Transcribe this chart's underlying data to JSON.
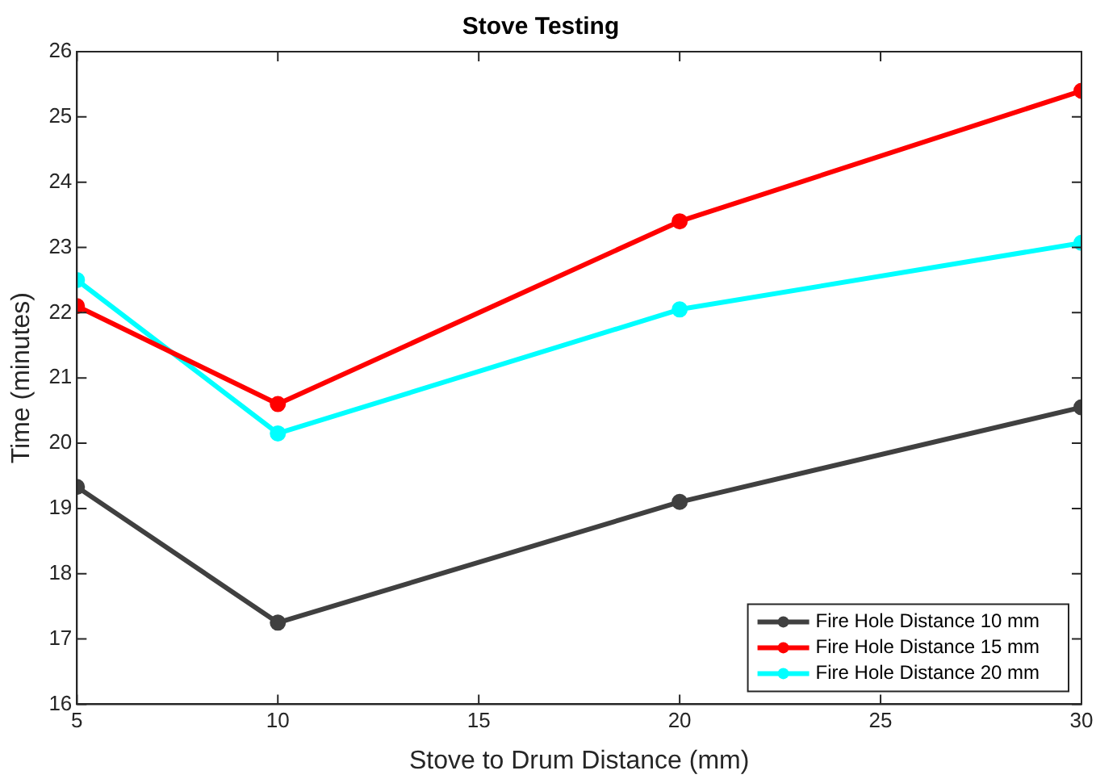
{
  "chart_data": {
    "type": "line",
    "title": "Stove Testing",
    "xlabel": "Stove to Drum Distance (mm)",
    "ylabel": "Time (minutes)",
    "x": [
      5,
      10,
      20,
      30
    ],
    "series": [
      {
        "name": "Fire Hole Distance 10 mm",
        "color": "#404040",
        "values": [
          19.33,
          17.25,
          19.1,
          20.55
        ]
      },
      {
        "name": "Fire Hole Distance 15 mm",
        "color": "#ff0000",
        "values": [
          22.1,
          20.6,
          23.4,
          25.4
        ]
      },
      {
        "name": "Fire Hole Distance 20 mm",
        "color": "#00ffff",
        "values": [
          22.5,
          20.15,
          22.05,
          23.07
        ]
      }
    ],
    "xlim": [
      5,
      30
    ],
    "xticks": [
      5,
      10,
      15,
      20,
      25,
      30
    ],
    "ylim": [
      16,
      26
    ],
    "yticks": [
      16,
      17,
      18,
      19,
      20,
      21,
      22,
      23,
      24,
      25,
      26
    ],
    "grid": false,
    "legend": "bottom right",
    "marker": "circle",
    "line_style": "solid"
  }
}
